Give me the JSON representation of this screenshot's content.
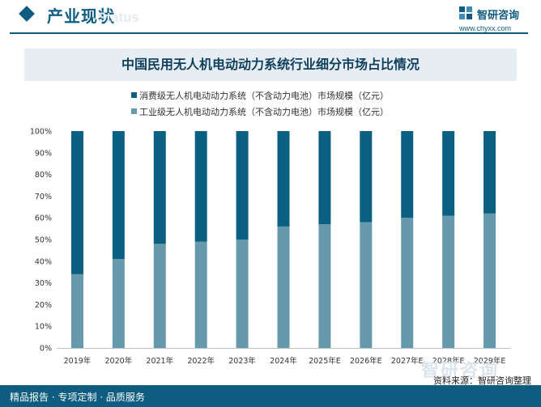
{
  "header": {
    "title": "产业现状",
    "watermark": "Status",
    "brand_name": "智研咨询",
    "brand_url": "www.chyxx.com"
  },
  "footer": {
    "left": "精品报告 · 专项定制 · 品质服务",
    "right": "资料来源：智研咨询整理",
    "watermark": "智研咨询"
  },
  "colors": {
    "brand": "#0e5c80",
    "consumer": "#0b5f80",
    "industrial": "#6699ab"
  },
  "chart_data": {
    "type": "bar",
    "stacked": true,
    "percent": true,
    "title": "中国民用无人机电动动力系统行业细分市场占比情况",
    "categories": [
      "2019年",
      "2020年",
      "2021年",
      "2022年",
      "2023年",
      "2024年",
      "2025年E",
      "2026年E",
      "2027年E",
      "2028年E",
      "2029年E"
    ],
    "series": [
      {
        "name": "工业级无人机电动动力系统（不含动力电池）市场规模（亿元）",
        "values": [
          34,
          41,
          48,
          49,
          50,
          56,
          57,
          58,
          60,
          61,
          62
        ]
      },
      {
        "name": "消费级无人机电动动力系统（不含动力电池）市场规模（亿元）",
        "values": [
          66,
          59,
          52,
          51,
          50,
          44,
          43,
          42,
          40,
          39,
          38
        ]
      }
    ],
    "y_ticks": [
      "0%",
      "10%",
      "20%",
      "30%",
      "40%",
      "50%",
      "60%",
      "70%",
      "80%",
      "90%",
      "100%"
    ],
    "ylim": [
      0,
      100
    ],
    "legend_position": "top-left",
    "grid": false
  }
}
